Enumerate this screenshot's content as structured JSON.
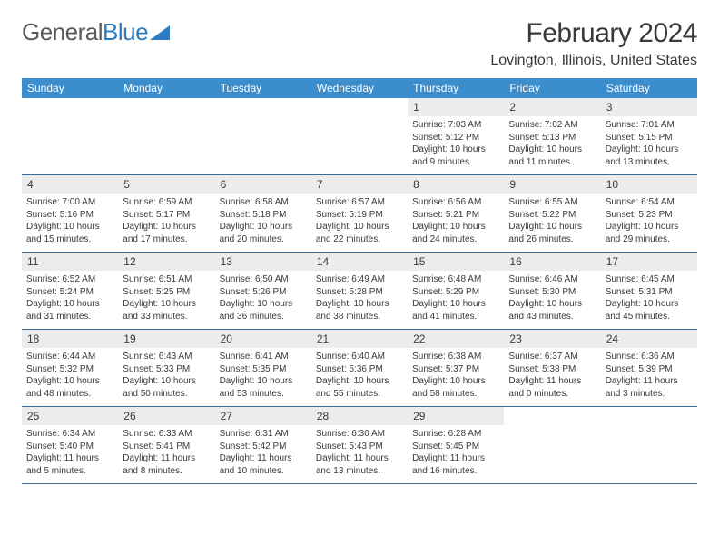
{
  "logo": {
    "text1": "General",
    "text2": "Blue"
  },
  "title": "February 2024",
  "location": "Lovington, Illinois, United States",
  "colors": {
    "header_bg": "#3c8dcc",
    "header_text": "#ffffff",
    "daynum_bg": "#ececec",
    "border": "#3c6a95",
    "text": "#3a3a3a",
    "logo_blue": "#2e7cbf"
  },
  "day_names": [
    "Sunday",
    "Monday",
    "Tuesday",
    "Wednesday",
    "Thursday",
    "Friday",
    "Saturday"
  ],
  "weeks": [
    [
      {
        "n": "",
        "lines": [
          "",
          "",
          "",
          ""
        ]
      },
      {
        "n": "",
        "lines": [
          "",
          "",
          "",
          ""
        ]
      },
      {
        "n": "",
        "lines": [
          "",
          "",
          "",
          ""
        ]
      },
      {
        "n": "",
        "lines": [
          "",
          "",
          "",
          ""
        ]
      },
      {
        "n": "1",
        "lines": [
          "Sunrise: 7:03 AM",
          "Sunset: 5:12 PM",
          "Daylight: 10 hours",
          "and 9 minutes."
        ]
      },
      {
        "n": "2",
        "lines": [
          "Sunrise: 7:02 AM",
          "Sunset: 5:13 PM",
          "Daylight: 10 hours",
          "and 11 minutes."
        ]
      },
      {
        "n": "3",
        "lines": [
          "Sunrise: 7:01 AM",
          "Sunset: 5:15 PM",
          "Daylight: 10 hours",
          "and 13 minutes."
        ]
      }
    ],
    [
      {
        "n": "4",
        "lines": [
          "Sunrise: 7:00 AM",
          "Sunset: 5:16 PM",
          "Daylight: 10 hours",
          "and 15 minutes."
        ]
      },
      {
        "n": "5",
        "lines": [
          "Sunrise: 6:59 AM",
          "Sunset: 5:17 PM",
          "Daylight: 10 hours",
          "and 17 minutes."
        ]
      },
      {
        "n": "6",
        "lines": [
          "Sunrise: 6:58 AM",
          "Sunset: 5:18 PM",
          "Daylight: 10 hours",
          "and 20 minutes."
        ]
      },
      {
        "n": "7",
        "lines": [
          "Sunrise: 6:57 AM",
          "Sunset: 5:19 PM",
          "Daylight: 10 hours",
          "and 22 minutes."
        ]
      },
      {
        "n": "8",
        "lines": [
          "Sunrise: 6:56 AM",
          "Sunset: 5:21 PM",
          "Daylight: 10 hours",
          "and 24 minutes."
        ]
      },
      {
        "n": "9",
        "lines": [
          "Sunrise: 6:55 AM",
          "Sunset: 5:22 PM",
          "Daylight: 10 hours",
          "and 26 minutes."
        ]
      },
      {
        "n": "10",
        "lines": [
          "Sunrise: 6:54 AM",
          "Sunset: 5:23 PM",
          "Daylight: 10 hours",
          "and 29 minutes."
        ]
      }
    ],
    [
      {
        "n": "11",
        "lines": [
          "Sunrise: 6:52 AM",
          "Sunset: 5:24 PM",
          "Daylight: 10 hours",
          "and 31 minutes."
        ]
      },
      {
        "n": "12",
        "lines": [
          "Sunrise: 6:51 AM",
          "Sunset: 5:25 PM",
          "Daylight: 10 hours",
          "and 33 minutes."
        ]
      },
      {
        "n": "13",
        "lines": [
          "Sunrise: 6:50 AM",
          "Sunset: 5:26 PM",
          "Daylight: 10 hours",
          "and 36 minutes."
        ]
      },
      {
        "n": "14",
        "lines": [
          "Sunrise: 6:49 AM",
          "Sunset: 5:28 PM",
          "Daylight: 10 hours",
          "and 38 minutes."
        ]
      },
      {
        "n": "15",
        "lines": [
          "Sunrise: 6:48 AM",
          "Sunset: 5:29 PM",
          "Daylight: 10 hours",
          "and 41 minutes."
        ]
      },
      {
        "n": "16",
        "lines": [
          "Sunrise: 6:46 AM",
          "Sunset: 5:30 PM",
          "Daylight: 10 hours",
          "and 43 minutes."
        ]
      },
      {
        "n": "17",
        "lines": [
          "Sunrise: 6:45 AM",
          "Sunset: 5:31 PM",
          "Daylight: 10 hours",
          "and 45 minutes."
        ]
      }
    ],
    [
      {
        "n": "18",
        "lines": [
          "Sunrise: 6:44 AM",
          "Sunset: 5:32 PM",
          "Daylight: 10 hours",
          "and 48 minutes."
        ]
      },
      {
        "n": "19",
        "lines": [
          "Sunrise: 6:43 AM",
          "Sunset: 5:33 PM",
          "Daylight: 10 hours",
          "and 50 minutes."
        ]
      },
      {
        "n": "20",
        "lines": [
          "Sunrise: 6:41 AM",
          "Sunset: 5:35 PM",
          "Daylight: 10 hours",
          "and 53 minutes."
        ]
      },
      {
        "n": "21",
        "lines": [
          "Sunrise: 6:40 AM",
          "Sunset: 5:36 PM",
          "Daylight: 10 hours",
          "and 55 minutes."
        ]
      },
      {
        "n": "22",
        "lines": [
          "Sunrise: 6:38 AM",
          "Sunset: 5:37 PM",
          "Daylight: 10 hours",
          "and 58 minutes."
        ]
      },
      {
        "n": "23",
        "lines": [
          "Sunrise: 6:37 AM",
          "Sunset: 5:38 PM",
          "Daylight: 11 hours",
          "and 0 minutes."
        ]
      },
      {
        "n": "24",
        "lines": [
          "Sunrise: 6:36 AM",
          "Sunset: 5:39 PM",
          "Daylight: 11 hours",
          "and 3 minutes."
        ]
      }
    ],
    [
      {
        "n": "25",
        "lines": [
          "Sunrise: 6:34 AM",
          "Sunset: 5:40 PM",
          "Daylight: 11 hours",
          "and 5 minutes."
        ]
      },
      {
        "n": "26",
        "lines": [
          "Sunrise: 6:33 AM",
          "Sunset: 5:41 PM",
          "Daylight: 11 hours",
          "and 8 minutes."
        ]
      },
      {
        "n": "27",
        "lines": [
          "Sunrise: 6:31 AM",
          "Sunset: 5:42 PM",
          "Daylight: 11 hours",
          "and 10 minutes."
        ]
      },
      {
        "n": "28",
        "lines": [
          "Sunrise: 6:30 AM",
          "Sunset: 5:43 PM",
          "Daylight: 11 hours",
          "and 13 minutes."
        ]
      },
      {
        "n": "29",
        "lines": [
          "Sunrise: 6:28 AM",
          "Sunset: 5:45 PM",
          "Daylight: 11 hours",
          "and 16 minutes."
        ]
      },
      {
        "n": "",
        "lines": [
          "",
          "",
          "",
          ""
        ]
      },
      {
        "n": "",
        "lines": [
          "",
          "",
          "",
          ""
        ]
      }
    ]
  ]
}
